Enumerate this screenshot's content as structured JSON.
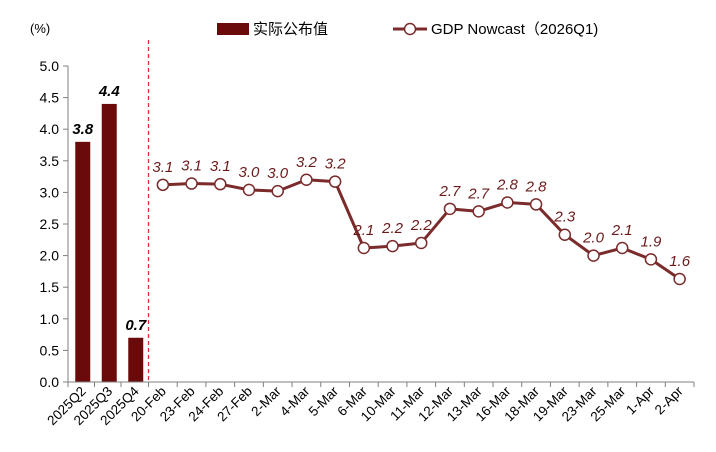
{
  "chart_data": {
    "type": "bar+line",
    "unit_label": "(%)",
    "ylim": [
      0,
      5
    ],
    "yticks": [
      "0.0",
      "0.5",
      "1.0",
      "1.5",
      "2.0",
      "2.5",
      "3.0",
      "3.5",
      "4.0",
      "4.5",
      "5.0"
    ],
    "bar_series": {
      "name": "实际公布值",
      "color": "#6b0a0a",
      "categories": [
        "2025Q2",
        "2025Q3",
        "2025Q4"
      ],
      "values": [
        3.8,
        4.4,
        0.7
      ],
      "labels": [
        "3.8",
        "4.4",
        "0.7"
      ]
    },
    "line_series": {
      "name": "GDP Nowcast（2026Q1)",
      "color": "#7b2b2b",
      "categories": [
        "20-Feb",
        "23-Feb",
        "24-Feb",
        "27-Feb",
        "2-Mar",
        "4-Mar",
        "5-Mar",
        "6-Mar",
        "10-Mar",
        "11-Mar",
        "12-Mar",
        "13-Mar",
        "16-Mar",
        "18-Mar",
        "19-Mar",
        "23-Mar",
        "25-Mar",
        "1-Apr",
        "2-Apr"
      ],
      "values": [
        3.12,
        3.14,
        3.13,
        3.04,
        3.02,
        3.2,
        3.17,
        2.12,
        2.15,
        2.2,
        2.74,
        2.7,
        2.84,
        2.81,
        2.33,
        2.0,
        2.12,
        1.94,
        1.63
      ],
      "labels": [
        "3.1",
        "3.1",
        "3.1",
        "3.0",
        "3.0",
        "3.2",
        "3.2",
        "2.1",
        "2.2",
        "2.2",
        "2.7",
        "2.7",
        "2.8",
        "2.8",
        "2.3",
        "2.0",
        "2.1",
        "1.9",
        "1.6"
      ]
    },
    "separator": {
      "style": "dashed",
      "color": "#e03030"
    },
    "legend_position": "top",
    "grid": false
  }
}
